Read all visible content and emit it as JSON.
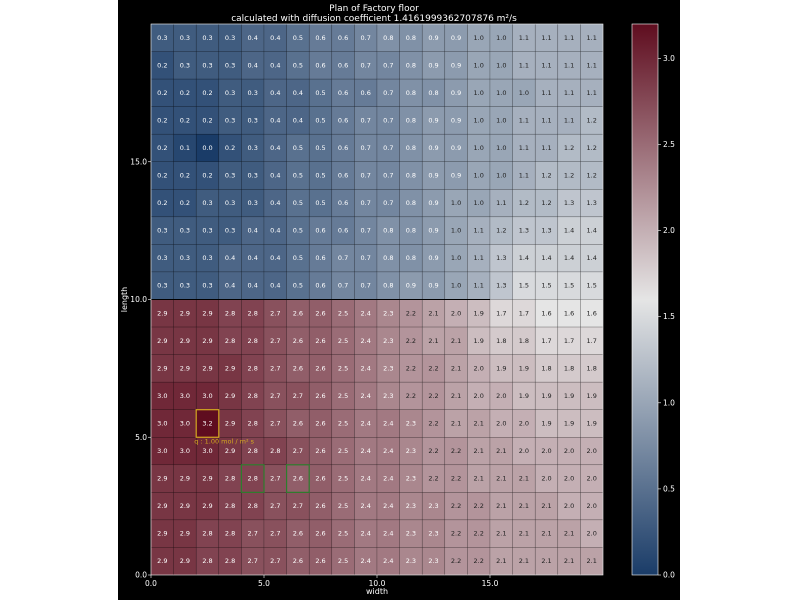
{
  "chart_data": {
    "type": "heatmap",
    "title": "Plan of Factory floor",
    "subtitle": "calculated with diffusion coefficient 1.4161999362707876 m²/s",
    "xlabel": "width",
    "ylabel": "length",
    "x_ticks": [
      "0.0",
      "5.0",
      "10.0",
      "15.0"
    ],
    "y_ticks": [
      "0.0",
      "5.0",
      "10.0",
      "15.0"
    ],
    "xlim": [
      0,
      20
    ],
    "ylim": [
      0,
      20
    ],
    "colorbar": {
      "vmin": 0.0,
      "vmax": 3.2,
      "ticks": [
        "0.0",
        "0.5",
        "1.0",
        "1.5",
        "2.0",
        "2.5",
        "3.0"
      ],
      "colormap": "RdBu_r",
      "low_color": "#1a3c68",
      "mid_color": "#e5e5e5",
      "high_color": "#5f0d1f"
    },
    "grid_columns": 20,
    "grid_rows_top_to_bottom": [
      [
        0.3,
        0.3,
        0.3,
        0.3,
        0.4,
        0.4,
        0.5,
        0.6,
        0.6,
        0.7,
        0.8,
        0.8,
        0.9,
        0.9,
        1.0,
        1.0,
        1.1,
        1.1,
        1.1,
        1.1
      ],
      [
        0.2,
        0.3,
        0.3,
        0.3,
        0.4,
        0.4,
        0.5,
        0.6,
        0.6,
        0.7,
        0.7,
        0.8,
        0.9,
        0.9,
        1.0,
        1.0,
        1.1,
        1.1,
        1.1,
        1.1
      ],
      [
        0.2,
        0.2,
        0.2,
        0.3,
        0.3,
        0.4,
        0.4,
        0.5,
        0.6,
        0.6,
        0.7,
        0.8,
        0.8,
        0.9,
        1.0,
        1.0,
        1.0,
        1.1,
        1.1,
        1.1
      ],
      [
        0.2,
        0.2,
        0.2,
        0.3,
        0.3,
        0.4,
        0.4,
        0.5,
        0.6,
        0.7,
        0.7,
        0.8,
        0.9,
        0.9,
        1.0,
        1.0,
        1.1,
        1.1,
        1.1,
        1.2
      ],
      [
        0.2,
        0.1,
        0.0,
        0.2,
        0.3,
        0.4,
        0.5,
        0.5,
        0.6,
        0.7,
        0.7,
        0.8,
        0.9,
        0.9,
        1.0,
        1.0,
        1.1,
        1.1,
        1.2,
        1.2
      ],
      [
        0.2,
        0.2,
        0.2,
        0.3,
        0.3,
        0.4,
        0.5,
        0.5,
        0.6,
        0.7,
        0.7,
        0.8,
        0.9,
        0.9,
        1.0,
        1.0,
        1.1,
        1.2,
        1.2,
        1.2
      ],
      [
        0.2,
        0.2,
        0.3,
        0.3,
        0.3,
        0.4,
        0.5,
        0.5,
        0.6,
        0.7,
        0.7,
        0.8,
        0.9,
        1.0,
        1.0,
        1.1,
        1.2,
        1.2,
        1.3,
        1.3
      ],
      [
        0.3,
        0.3,
        0.3,
        0.3,
        0.4,
        0.4,
        0.5,
        0.6,
        0.6,
        0.7,
        0.8,
        0.8,
        0.9,
        1.0,
        1.1,
        1.2,
        1.3,
        1.3,
        1.4,
        1.4
      ],
      [
        0.3,
        0.3,
        0.3,
        0.4,
        0.4,
        0.4,
        0.5,
        0.6,
        0.7,
        0.7,
        0.8,
        0.8,
        0.9,
        1.0,
        1.1,
        1.3,
        1.4,
        1.4,
        1.4,
        1.4
      ],
      [
        0.3,
        0.3,
        0.3,
        0.4,
        0.4,
        0.4,
        0.5,
        0.6,
        0.7,
        0.7,
        0.8,
        0.9,
        0.9,
        1.0,
        1.1,
        1.3,
        1.5,
        1.5,
        1.5,
        1.5
      ],
      [
        2.9,
        2.9,
        2.9,
        2.8,
        2.8,
        2.7,
        2.6,
        2.6,
        2.5,
        2.4,
        2.3,
        2.2,
        2.1,
        2.0,
        1.9,
        1.7,
        1.7,
        1.6,
        1.6,
        1.6
      ],
      [
        2.9,
        2.9,
        2.9,
        2.8,
        2.8,
        2.7,
        2.6,
        2.6,
        2.5,
        2.4,
        2.3,
        2.2,
        2.1,
        2.1,
        1.9,
        1.8,
        1.8,
        1.7,
        1.7,
        1.7
      ],
      [
        2.9,
        2.9,
        2.9,
        2.9,
        2.8,
        2.7,
        2.6,
        2.6,
        2.5,
        2.4,
        2.3,
        2.2,
        2.2,
        2.1,
        2.0,
        1.9,
        1.9,
        1.8,
        1.8,
        1.8
      ],
      [
        3.0,
        3.0,
        3.0,
        2.9,
        2.8,
        2.7,
        2.7,
        2.6,
        2.5,
        2.4,
        2.3,
        2.2,
        2.2,
        2.1,
        2.0,
        2.0,
        1.9,
        1.9,
        1.9,
        1.9
      ],
      [
        3.0,
        3.0,
        3.2,
        2.9,
        2.8,
        2.7,
        2.6,
        2.6,
        2.5,
        2.4,
        2.4,
        2.3,
        2.2,
        2.1,
        2.1,
        2.0,
        2.0,
        1.9,
        1.9,
        1.9
      ],
      [
        3.0,
        3.0,
        3.0,
        2.9,
        2.8,
        2.8,
        2.7,
        2.6,
        2.5,
        2.4,
        2.4,
        2.3,
        2.2,
        2.2,
        2.1,
        2.1,
        2.0,
        2.0,
        2.0,
        2.0
      ],
      [
        2.9,
        2.9,
        2.9,
        2.8,
        2.8,
        2.7,
        2.6,
        2.6,
        2.5,
        2.4,
        2.4,
        2.3,
        2.2,
        2.2,
        2.1,
        2.1,
        2.1,
        2.0,
        2.0,
        2.0
      ],
      [
        2.9,
        2.9,
        2.9,
        2.8,
        2.8,
        2.7,
        2.7,
        2.6,
        2.5,
        2.4,
        2.4,
        2.3,
        2.3,
        2.2,
        2.2,
        2.1,
        2.1,
        2.1,
        2.0,
        2.0
      ],
      [
        2.9,
        2.9,
        2.8,
        2.8,
        2.7,
        2.7,
        2.6,
        2.6,
        2.5,
        2.4,
        2.4,
        2.3,
        2.3,
        2.2,
        2.2,
        2.1,
        2.1,
        2.1,
        2.1,
        2.0
      ],
      [
        2.9,
        2.9,
        2.8,
        2.8,
        2.7,
        2.7,
        2.6,
        2.6,
        2.5,
        2.4,
        2.4,
        2.3,
        2.3,
        2.2,
        2.2,
        2.1,
        2.1,
        2.1,
        2.1,
        2.1
      ]
    ],
    "annotations": [
      {
        "name": "source-marker",
        "col": 2,
        "row_from_top": 14,
        "color": "#d4a820",
        "text": "q : 1.00 mol / m² s"
      },
      {
        "name": "sensor-marker-a",
        "col": 4,
        "row_from_top": 16,
        "color": "#2d7d2d"
      },
      {
        "name": "sensor-marker-b",
        "col": 6,
        "row_from_top": 16,
        "color": "#2d7d2d"
      }
    ]
  }
}
